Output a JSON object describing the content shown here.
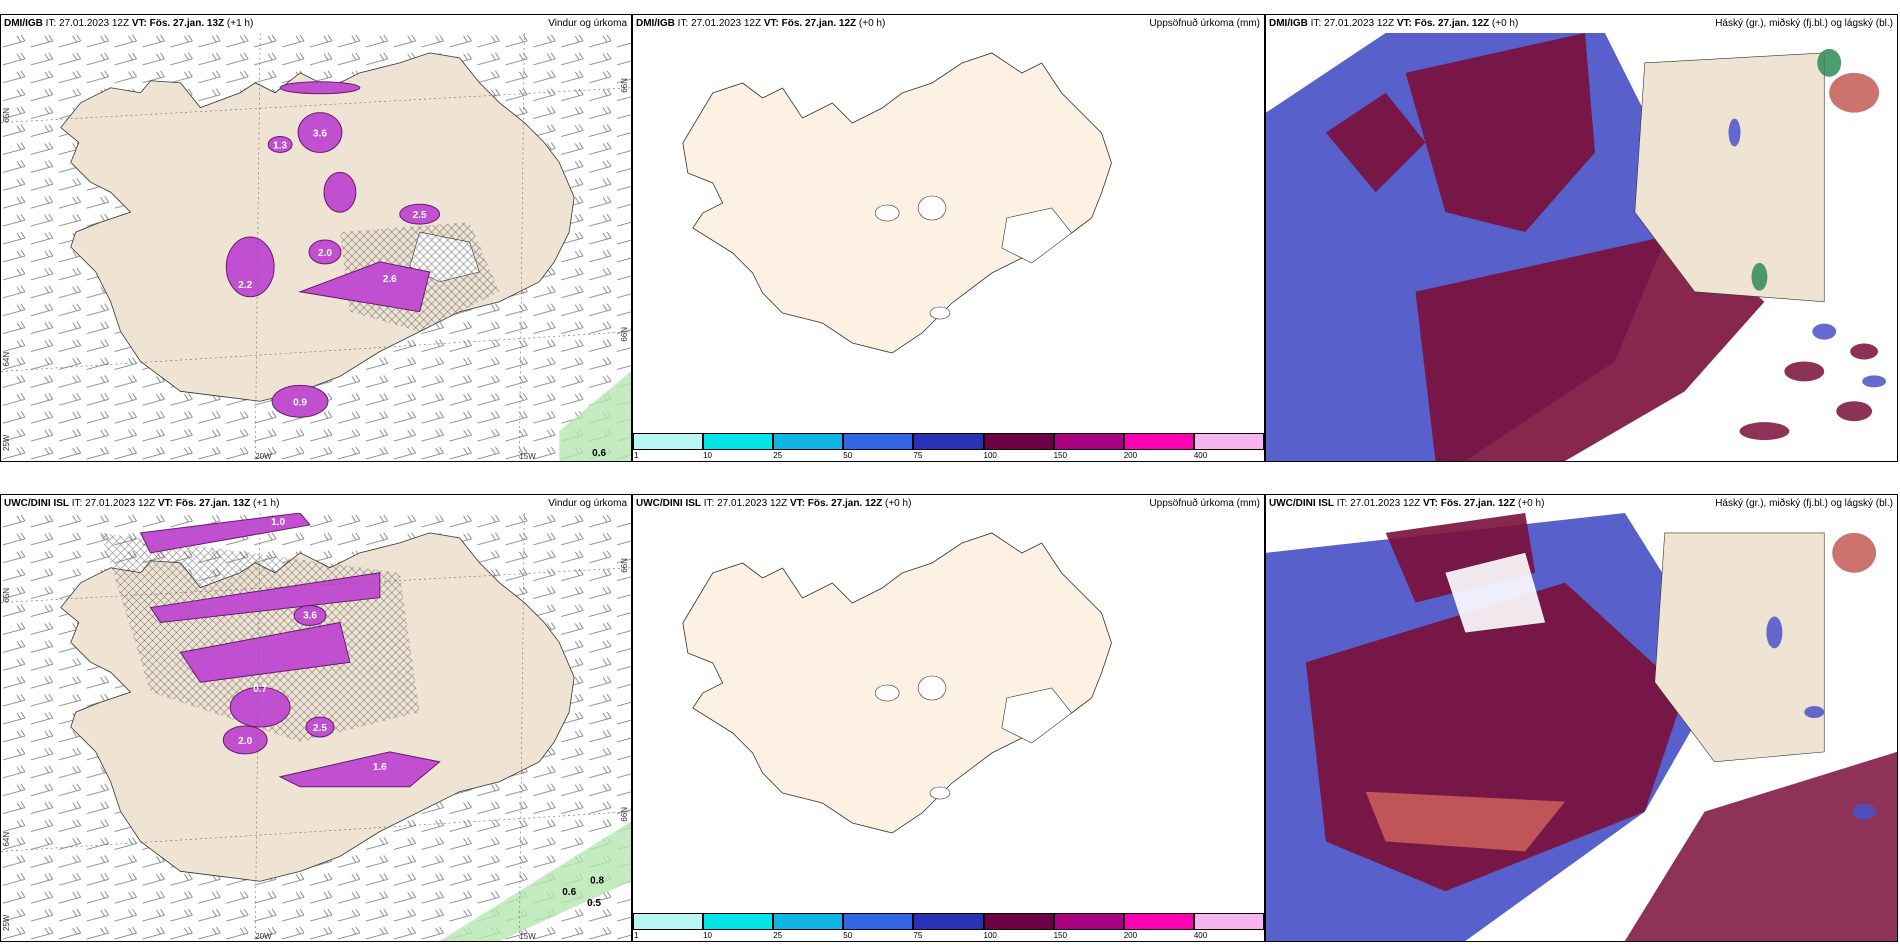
{
  "panels": [
    {
      "model": "DMI/IGB",
      "it_label": "IT:",
      "it_value": "27.01.2023 12Z",
      "vt_label": "VT:",
      "vt_value": "Fös. 27.jan. 13Z",
      "lead": "(+1 h)",
      "title": "Vindur og úrkoma",
      "lat_left": "65N",
      "lat_right": "66N",
      "lat_left2": "64N",
      "lon_left": "20W",
      "lon_right": "15W",
      "lon_bottom_left": "25W",
      "values": [
        "3.6",
        "1.3",
        "2.5",
        "2.0",
        "2.6",
        "2.2",
        "0.9",
        "0.6"
      ]
    },
    {
      "model": "DMI/IGB",
      "it_label": "IT:",
      "it_value": "27.01.2023 12Z",
      "vt_label": "VT:",
      "vt_value": "Fös. 27.jan. 12Z",
      "lead": "(+0 h)",
      "title": "Uppsöfnuð úrkoma (mm)"
    },
    {
      "model": "DMI/IGB",
      "it_label": "IT:",
      "it_value": "27.01.2023 12Z",
      "vt_label": "VT:",
      "vt_value": "Fös. 27.jan. 12Z",
      "lead": "(+0 h)",
      "title": "Háský (gr.), miðský (fj.bl.) og lágský (bl.)"
    },
    {
      "model": "UWC/DINI ISL",
      "it_label": "IT:",
      "it_value": "27.01.2023 12Z",
      "vt_label": "VT:",
      "vt_value": "Fös. 27.jan. 13Z",
      "lead": "(+1 h)",
      "title": "Vindur og úrkoma",
      "lat_left": "65N",
      "lat_right": "66N",
      "lat_left2": "64N",
      "lon_left": "20W",
      "lon_right": "15W",
      "lon_bottom_left": "25W",
      "values": [
        "3.6",
        "1.0",
        "2.0",
        "1.6",
        "2.5",
        "0.7",
        "0.6",
        "0.8",
        "0.5"
      ]
    },
    {
      "model": "UWC/DINI ISL",
      "it_label": "IT:",
      "it_value": "27.01.2023 12Z",
      "vt_label": "VT:",
      "vt_value": "Fös. 27.jan. 12Z",
      "lead": "(+0 h)",
      "title": "Uppsöfnuð úrkoma (mm)"
    },
    {
      "model": "UWC/DINI ISL",
      "it_label": "IT:",
      "it_value": "27.01.2023 12Z",
      "vt_label": "VT:",
      "vt_value": "Fös. 27.jan. 12Z",
      "lead": "(+0 h)",
      "title": "Háský (gr.), miðský (fj.bl.) og lágský (bl.)"
    }
  ],
  "colorbar": {
    "labels": [
      "1",
      "10",
      "25",
      "50",
      "75",
      "100",
      "150",
      "200",
      "400"
    ],
    "colors": [
      "#b8f6f6",
      "#00e6e6",
      "#0fb4e6",
      "#3264e6",
      "#2832b4",
      "#6e0046",
      "#aa0082",
      "#ff00b4",
      "#f5b4f0"
    ]
  },
  "colors": {
    "land": "#efe3d3",
    "land_light": "#fdf1e3",
    "precip": "#c050d0",
    "precip_dark": "#6a1a6e",
    "high_cloud": "#2e8b57",
    "mid_cloud": "#7a0f3a",
    "low_cloud": "#4a52c8"
  }
}
